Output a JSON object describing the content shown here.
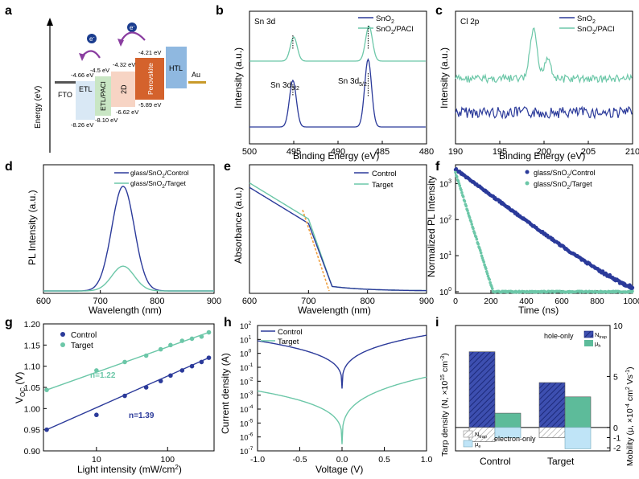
{
  "colors": {
    "control": "#2b3a9a",
    "target": "#6cc7a8",
    "fit": "#f0a040",
    "etl": "#d9e8f5",
    "etl_paci": "#c9e6c4",
    "two_d": "#f7d4c4",
    "perovskite": "#d4622c",
    "htl": "#8fb8e0",
    "au": "#c99a2a",
    "fto": "#555555",
    "hatch_blue": "#2b3a9a",
    "light_blue": "#bfe4f7",
    "teal": "#5dbb9a",
    "grey_hatch": "#9a9a9a"
  },
  "panels": {
    "a": {
      "letter": "a",
      "ylabel": "Energy (eV)",
      "layers": [
        "FTO",
        "ETL",
        "ETL/PACl",
        "2D",
        "Perovskite",
        "HTL",
        "Au"
      ],
      "levels": {
        "etl_cb": "-4.66 eV",
        "etl_vb": "-8.26 eV",
        "paci_cb": "-4.5 eV",
        "paci_vb": "-8.10 eV",
        "twod_cb": "-4.32 eV",
        "twod_vb": "-6.62 eV",
        "pvk_cb": "-4.21 eV",
        "pvk_vb": "-5.89 eV"
      },
      "electron": "e",
      "electron_sup": "-"
    },
    "b": {
      "letter": "b",
      "inner_title": "Sn 3d",
      "xlabel": "Binding Energy (eV)",
      "ylabel": "Intensity (a.u.)",
      "legend": [
        "SnO2",
        "SnO2/PACl"
      ],
      "peak1": "Sn 3d",
      "peak1_sub": "3/2",
      "peak2": "Sn 3d",
      "peak2_sub": "5/2",
      "xticks": [
        "500",
        "495",
        "490",
        "485",
        "480"
      ]
    },
    "c": {
      "letter": "c",
      "inner_title": "Cl 2p",
      "xlabel": "Binding Energy (eV)",
      "ylabel": "Intensity (a.u.)",
      "legend": [
        "SnO2",
        "SnO2/PACl"
      ],
      "xticks": [
        "190",
        "195",
        "200",
        "205",
        "210"
      ]
    },
    "d": {
      "letter": "d",
      "xlabel": "Wavelength (nm)",
      "ylabel": "PL Intensity (a.u.)",
      "legend": [
        "glass/SnO2/Control",
        "glass/SnO2/Target"
      ],
      "xticks": [
        "600",
        "700",
        "800",
        "900"
      ]
    },
    "e": {
      "letter": "e",
      "xlabel": "Wavelength (nm)",
      "ylabel": "Absorbance (a.u.)",
      "legend": [
        "Control",
        "Target"
      ],
      "xticks": [
        "600",
        "700",
        "800",
        "900"
      ]
    },
    "f": {
      "letter": "f",
      "xlabel": "Time (ns)",
      "ylabel": "Normalized PL Intensity",
      "legend": [
        "glass/SnO2/Control",
        "glass/SnO2/Target"
      ],
      "xticks": [
        "0",
        "200",
        "400",
        "600",
        "800",
        "1000"
      ],
      "yticks": [
        "10",
        "10",
        "10",
        "10"
      ],
      "ytick_exp": [
        "0",
        "1",
        "2",
        "3"
      ]
    },
    "g": {
      "letter": "g",
      "xlabel": "Light intensity (mW/cm",
      "xlabel_sup": "2",
      "xlabel_end": ")",
      "ylabel": "V",
      "ylabel_sub": "OC",
      "ylabel_end": " (V)",
      "legend": [
        "Control",
        "Target"
      ],
      "n_control": "n=1.39",
      "n_target": "n=1.22",
      "yticks": [
        "0.90",
        "0.95",
        "1.00",
        "1.05",
        "1.10",
        "1.15",
        "1.20"
      ],
      "xticks": [
        "10",
        "100"
      ]
    },
    "h": {
      "letter": "h",
      "xlabel": "Voltage (V)",
      "ylabel": "Current density (A)",
      "legend": [
        "Control",
        "Target"
      ],
      "xticks": [
        "-1.0",
        "-0.5",
        "0.0",
        "0.5",
        "1.0"
      ],
      "yticks": [
        "10",
        "10",
        "10",
        "10",
        "10",
        "10",
        "10",
        "10",
        "10",
        "10"
      ],
      "ytick_exp": [
        "2",
        "1",
        "0",
        "-1",
        "-2",
        "-3",
        "-4",
        "-5",
        "-6",
        "-7"
      ]
    },
    "i": {
      "letter": "i",
      "categories": [
        "Control",
        "Target"
      ],
      "ylabel_left": "Tarp density (N, ×10",
      "ylabel_left_sup": "15",
      "ylabel_left_end": " cm",
      "ylabel_left_sup2": "-3",
      "ylabel_left_close": ")",
      "ylabel_right": "Mobility (μ, ×10",
      "ylabel_right_sup": "-4",
      "ylabel_right_end": " cm",
      "ylabel_right_sup2": "2",
      "ylabel_right_end2": " Vs",
      "ylabel_right_sup3": "-1",
      "ylabel_right_close": ")",
      "hole_label": "hole-only",
      "electron_label": "electron-only",
      "legend_ntrap": "N",
      "legend_ntrap_sub": "trap",
      "legend_muh": "μ",
      "legend_muh_sub": "h",
      "legend_mue": "μ",
      "legend_mue_sub": "e",
      "yticks_right": [
        "-2",
        "-1",
        "0",
        "5",
        "10"
      ]
    }
  },
  "chart_data": [
    {
      "panel": "b",
      "type": "line",
      "xlabel": "Binding Energy (eV)",
      "ylabel": "Intensity (a.u.)",
      "xlim": [
        500,
        480
      ],
      "series": [
        {
          "name": "SnO2",
          "peaks_eV": [
            495.1,
            486.6
          ]
        },
        {
          "name": "SnO2/PACl",
          "peaks_eV": [
            495.0,
            486.5
          ]
        }
      ]
    },
    {
      "panel": "c",
      "type": "line",
      "xlabel": "Binding Energy (eV)",
      "ylabel": "Intensity (a.u.)",
      "xlim": [
        190,
        210
      ],
      "series": [
        {
          "name": "SnO2",
          "peaks_eV": []
        },
        {
          "name": "SnO2/PACl",
          "peaks_eV": [
            198.8,
            200.4
          ]
        }
      ]
    },
    {
      "panel": "d",
      "type": "line",
      "xlabel": "Wavelength (nm)",
      "ylabel": "PL Intensity (a.u.)",
      "xlim": [
        600,
        900
      ],
      "series": [
        {
          "name": "glass/SnO2/Control",
          "peak_nm": 740,
          "relative_height": 0.93
        },
        {
          "name": "glass/SnO2/Target",
          "peak_nm": 740,
          "relative_height": 0.22
        }
      ]
    },
    {
      "panel": "e",
      "type": "line",
      "xlabel": "Wavelength (nm)",
      "ylabel": "Absorbance (a.u.)",
      "xlim": [
        600,
        900
      ],
      "edge_nm": 735
    },
    {
      "panel": "f",
      "type": "scatter",
      "xlabel": "Time (ns)",
      "ylabel": "Normalized PL Intensity",
      "xlim": [
        0,
        1000
      ],
      "ylim": [
        1,
        3000
      ],
      "log_y": true,
      "series": [
        {
          "name": "glass/SnO2/Control",
          "start": 2500,
          "floor": 1.0,
          "end_ns": 1000
        },
        {
          "name": "glass/SnO2/Target",
          "start": 2000,
          "floor": 1.0,
          "end_ns": 200
        }
      ]
    },
    {
      "panel": "g",
      "type": "scatter",
      "xlabel": "Light intensity (mW/cm2)",
      "ylabel": "VOC (V)",
      "xlim": [
        1.8,
        450
      ],
      "ylim": [
        0.9,
        1.2
      ],
      "log_x": true,
      "x": [
        2,
        10,
        25,
        50,
        80,
        110,
        160,
        220,
        300,
        380
      ],
      "series": [
        {
          "name": "Control",
          "y": [
            0.95,
            0.985,
            1.03,
            1.05,
            1.065,
            1.078,
            1.09,
            1.1,
            1.11,
            1.12
          ],
          "n": 1.39
        },
        {
          "name": "Target",
          "y": [
            1.044,
            1.09,
            1.11,
            1.125,
            1.14,
            1.15,
            1.16,
            1.165,
            1.17,
            1.18
          ],
          "n": 1.22
        }
      ]
    },
    {
      "panel": "h",
      "type": "line",
      "xlabel": "Voltage (V)",
      "ylabel": "Current density (A)",
      "xlim": [
        -1.0,
        1.0
      ],
      "ylim": [
        1e-07,
        100
      ],
      "log_y": true,
      "series": [
        {
          "name": "Control",
          "at_-1V": 8,
          "at_0V": 0.003,
          "at_1V": 20
        },
        {
          "name": "Target",
          "at_-1V": 0.002,
          "at_0V": 3e-07,
          "at_1V": 0.02
        }
      ]
    },
    {
      "panel": "i",
      "type": "bar",
      "categories": [
        "Control",
        "Target"
      ],
      "series": [
        {
          "name": "Ntrap (hole-only)",
          "values": [
            13.5,
            8.0
          ]
        },
        {
          "name": "μh",
          "values": [
            1.4,
            3.0
          ]
        },
        {
          "name": "Ntrap (electron-only)",
          "values": [
            -1.4,
            -1.0
          ]
        },
        {
          "name": "μe",
          "values": [
            -1.0,
            -2.1
          ]
        }
      ],
      "ylim_right": [
        -2.3,
        10
      ]
    }
  ]
}
